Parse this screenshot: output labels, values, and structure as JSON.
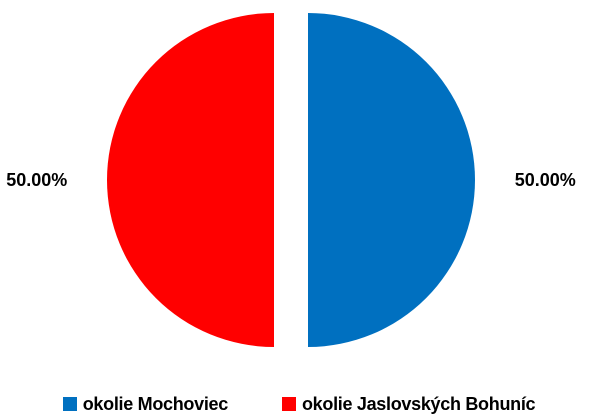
{
  "chart_data": {
    "type": "pie",
    "categories": [
      "okolie Mochoviec",
      "okolie Jaslovských Bohuníc"
    ],
    "values": [
      50.0,
      50.0
    ],
    "data_labels": [
      "50.00%",
      "50.00%"
    ],
    "colors": [
      "#0070C0",
      "#FF0000"
    ],
    "exploded": true,
    "legend_position": "bottom"
  }
}
